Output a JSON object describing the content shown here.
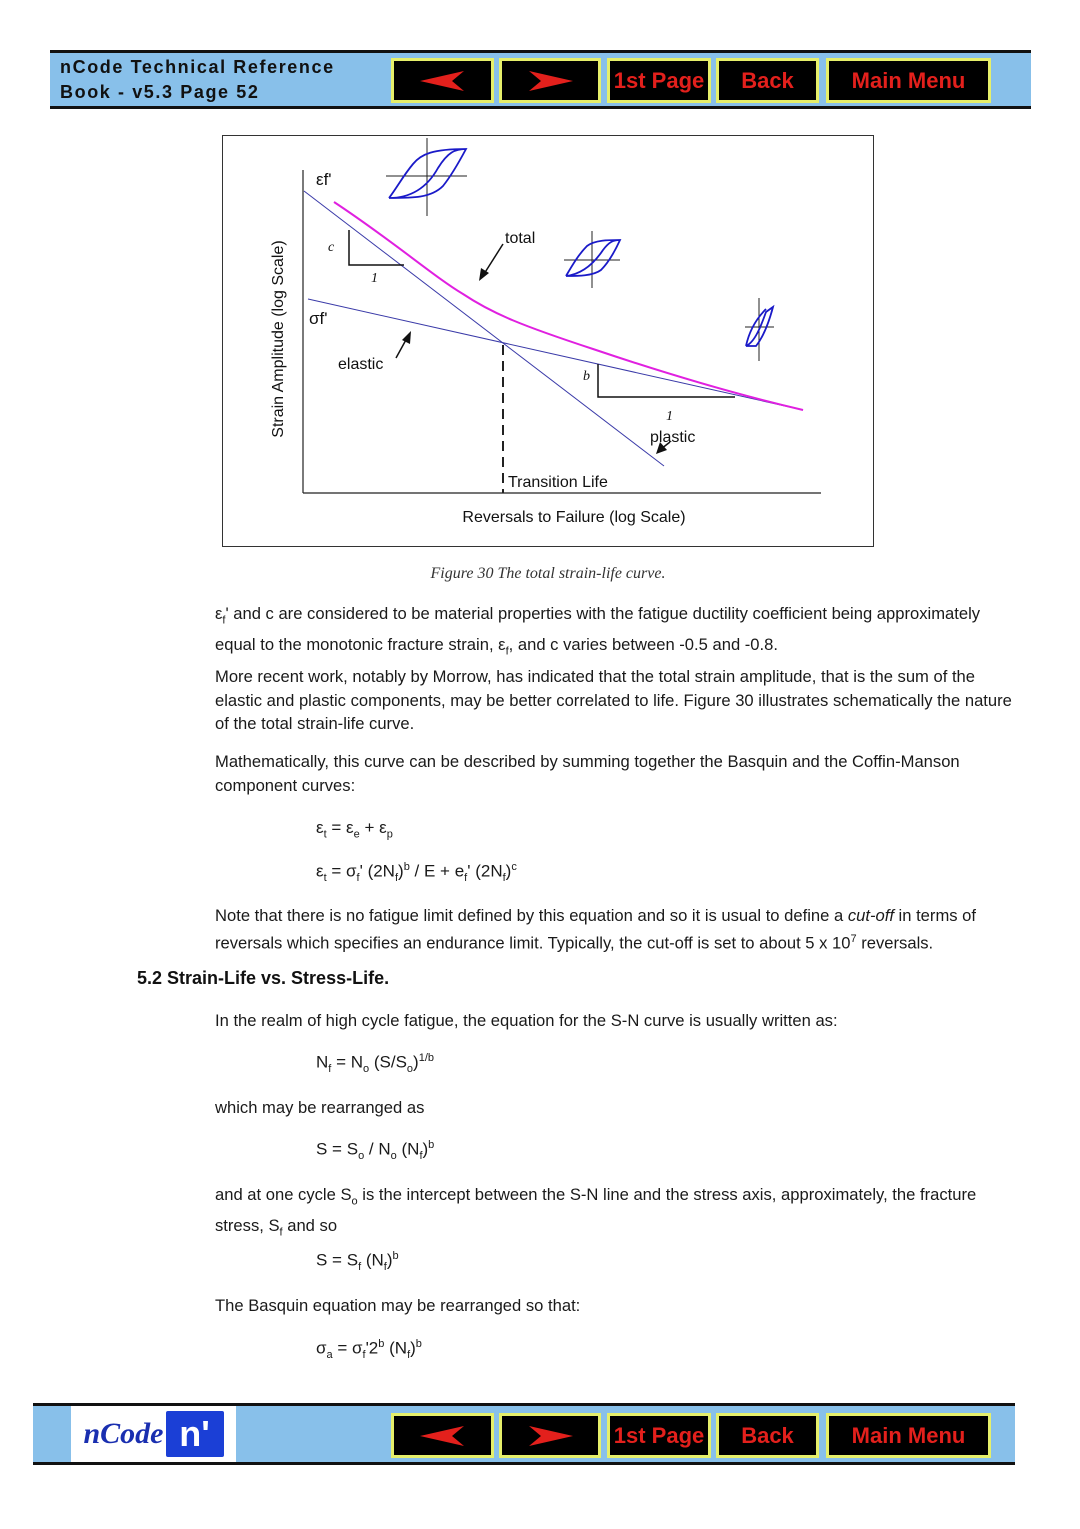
{
  "header": {
    "title_line1": "nCode Technical Reference",
    "title_line2": "Book - v5.3  Page 52"
  },
  "nav": {
    "prev_icon": "arrow-left-icon",
    "next_icon": "arrow-right-icon",
    "first_page": "1st Page",
    "back": "Back",
    "main_menu": "Main Menu"
  },
  "colors": {
    "bar": "#88c0ea",
    "button_bg": "#000000",
    "button_border": "#e6ef6a",
    "button_text": "#e3201c",
    "total_curve": "#e020e0",
    "lines": "#3a3aa8",
    "loops": "#1a1ac8"
  },
  "figure": {
    "y_label": "Strain Amplitude (log Scale)",
    "x_label": "Reversals to Failure (log Scale)",
    "eps_f": "εf'",
    "sigma_f": "σf'",
    "total": "total",
    "elastic": "elastic",
    "plastic": "plastic",
    "transition": "Transition Life",
    "slope_c": "c",
    "slope_b": "b",
    "one": "1",
    "caption": "Figure 30  The total strain-life curve."
  },
  "paragraphs": [
    [
      [
        "ε",
        "n"
      ],
      [
        "f",
        "sub"
      ],
      [
        "' and c are considered to be material properties with the fatigue ductility coefficient being approximately equal to the monotonic fracture strain, ε",
        "n"
      ],
      [
        "f",
        "sub"
      ],
      [
        ", and c varies between -0.5 and -0.8.",
        "n"
      ]
    ],
    [
      [
        "More recent work, notably by Morrow, has indicated that the total strain amplitude, that is the sum of the elastic and plastic components, may be better correlated to life. Figure 30 illustrates schematically the nature of the total strain-life curve.",
        "n"
      ]
    ],
    [
      [
        "Mathematically, this curve can be described by summing together the Basquin and the Coffin-Manson component curves:",
        "n"
      ]
    ],
    [
      [
        "Note that there is no fatigue limit defined by this equation and so it is usual to define a ",
        "n"
      ],
      [
        "cut-off",
        "it"
      ],
      [
        " in terms of reversals which specifies an endurance limit. Typically, the cut-off is set to about 5 x 10",
        "n"
      ],
      [
        "7",
        "sup"
      ],
      [
        " reversals.",
        "n"
      ]
    ],
    [
      [
        "In the realm of high cycle fatigue, the equation for the S-N curve is usually written as:",
        "n"
      ]
    ],
    [
      [
        "which may be rearranged as",
        "n"
      ]
    ],
    [
      [
        "and at one cycle S",
        "n"
      ],
      [
        "o",
        "sub"
      ],
      [
        " is the intercept between the S-N line and the stress axis, approximately, the fracture     stress, S",
        "n"
      ],
      [
        "f",
        "sub"
      ],
      [
        " and so",
        "n"
      ]
    ],
    [
      [
        "The Basquin equation may be rearranged so that:",
        "n"
      ]
    ]
  ],
  "heading": "5.2 Strain-Life vs. Stress-Life.",
  "equations": [
    [
      [
        "ε",
        "n"
      ],
      [
        "t",
        "sub"
      ],
      [
        "  =  ε",
        "n"
      ],
      [
        "e",
        "sub"
      ],
      [
        "  +  ε",
        "n"
      ],
      [
        "p",
        "sub"
      ]
    ],
    [
      [
        "ε",
        "n"
      ],
      [
        "t",
        "sub"
      ],
      [
        "  =  σ",
        "n"
      ],
      [
        "f",
        "sub"
      ],
      [
        "' (2N",
        "n"
      ],
      [
        "f",
        "sub"
      ],
      [
        ")",
        "n"
      ],
      [
        "b",
        "sup"
      ],
      [
        " / E +  e",
        "n"
      ],
      [
        "f",
        "sub"
      ],
      [
        "' (2N",
        "n"
      ],
      [
        "f",
        "sub"
      ],
      [
        ")",
        "n"
      ],
      [
        "c",
        "sup"
      ]
    ],
    [
      [
        "N",
        "n"
      ],
      [
        "f",
        "sub"
      ],
      [
        "  =  N",
        "n"
      ],
      [
        "o",
        "sub"
      ],
      [
        " (S/S",
        "n"
      ],
      [
        "o",
        "sub"
      ],
      [
        ")",
        "n"
      ],
      [
        "1/b",
        "sup"
      ]
    ],
    [
      [
        "S  =  S",
        "n"
      ],
      [
        "o",
        "sub"
      ],
      [
        " / N",
        "n"
      ],
      [
        "o",
        "sub"
      ],
      [
        " (N",
        "n"
      ],
      [
        "f",
        "sub"
      ],
      [
        ")",
        "n"
      ],
      [
        "b",
        "sup"
      ]
    ],
    [
      [
        "S  =  S",
        "n"
      ],
      [
        "f",
        "sub"
      ],
      [
        " (N",
        "n"
      ],
      [
        "f",
        "sub"
      ],
      [
        ")",
        "n"
      ],
      [
        "b",
        "sup"
      ]
    ],
    [
      [
        "σ",
        "n"
      ],
      [
        "a",
        "sub"
      ],
      [
        "  =  σ",
        "n"
      ],
      [
        "f",
        "sub"
      ],
      [
        "'2",
        "n"
      ],
      [
        "b",
        "sup"
      ],
      [
        " (N",
        "n"
      ],
      [
        "f",
        "sub"
      ],
      [
        ")",
        "n"
      ],
      [
        "b",
        "sup"
      ]
    ]
  ],
  "footer": {
    "logo_text": "nCode",
    "logo_mark": "n'"
  }
}
